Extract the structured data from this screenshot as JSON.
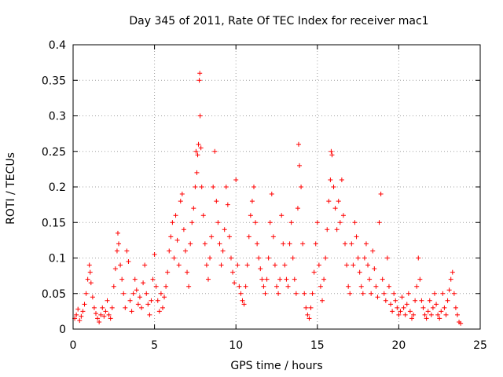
{
  "chart_data": {
    "type": "scatter",
    "title": "Day 345 of 2011, Rate Of TEC Index for receiver mac1",
    "xlabel": "GPS time / hours",
    "ylabel": "ROTI / TECUs",
    "xlim": [
      0,
      25
    ],
    "ylim": [
      0,
      0.4
    ],
    "x_ticks": [
      "0",
      "5",
      "10",
      "15",
      "20",
      "25"
    ],
    "y_ticks": [
      "0",
      "0.05",
      "0.1",
      "0.15",
      "0.2",
      "0.25",
      "0.3",
      "0.35",
      "0.4"
    ],
    "grid": true,
    "marker": "+",
    "color": "#ff0000",
    "series": [
      {
        "points": [
          [
            0.1,
            0.015
          ],
          [
            0.2,
            0.02
          ],
          [
            0.3,
            0.028
          ],
          [
            0.4,
            0.012
          ],
          [
            0.5,
            0.018
          ],
          [
            0.6,
            0.025
          ],
          [
            0.7,
            0.035
          ],
          [
            0.8,
            0.05
          ],
          [
            0.9,
            0.07
          ],
          [
            1.0,
            0.09
          ],
          [
            1.05,
            0.08
          ],
          [
            1.1,
            0.065
          ],
          [
            1.2,
            0.045
          ],
          [
            1.3,
            0.03
          ],
          [
            1.4,
            0.022
          ],
          [
            1.5,
            0.015
          ],
          [
            1.6,
            0.01
          ],
          [
            1.7,
            0.02
          ],
          [
            1.8,
            0.03
          ],
          [
            1.9,
            0.018
          ],
          [
            2.0,
            0.025
          ],
          [
            2.1,
            0.04
          ],
          [
            2.2,
            0.02
          ],
          [
            2.3,
            0.015
          ],
          [
            2.4,
            0.03
          ],
          [
            2.5,
            0.06
          ],
          [
            2.6,
            0.085
          ],
          [
            2.7,
            0.11
          ],
          [
            2.75,
            0.135
          ],
          [
            2.8,
            0.12
          ],
          [
            2.9,
            0.09
          ],
          [
            3.0,
            0.07
          ],
          [
            3.1,
            0.05
          ],
          [
            3.2,
            0.03
          ],
          [
            3.3,
            0.11
          ],
          [
            3.4,
            0.095
          ],
          [
            3.5,
            0.04
          ],
          [
            3.6,
            0.025
          ],
          [
            3.7,
            0.05
          ],
          [
            3.8,
            0.07
          ],
          [
            3.9,
            0.055
          ],
          [
            4.0,
            0.035
          ],
          [
            4.1,
            0.045
          ],
          [
            4.2,
            0.03
          ],
          [
            4.3,
            0.065
          ],
          [
            4.4,
            0.09
          ],
          [
            4.5,
            0.05
          ],
          [
            4.6,
            0.035
          ],
          [
            4.7,
            0.02
          ],
          [
            4.8,
            0.04
          ],
          [
            4.9,
            0.07
          ],
          [
            5.0,
            0.105
          ],
          [
            5.1,
            0.06
          ],
          [
            5.2,
            0.04
          ],
          [
            5.3,
            0.025
          ],
          [
            5.4,
            0.05
          ],
          [
            5.5,
            0.03
          ],
          [
            5.6,
            0.045
          ],
          [
            5.7,
            0.06
          ],
          [
            5.8,
            0.08
          ],
          [
            5.9,
            0.11
          ],
          [
            6.0,
            0.13
          ],
          [
            6.1,
            0.15
          ],
          [
            6.2,
            0.1
          ],
          [
            6.3,
            0.16
          ],
          [
            6.4,
            0.125
          ],
          [
            6.5,
            0.09
          ],
          [
            6.6,
            0.18
          ],
          [
            6.7,
            0.19
          ],
          [
            6.8,
            0.14
          ],
          [
            6.9,
            0.11
          ],
          [
            7.0,
            0.08
          ],
          [
            7.1,
            0.06
          ],
          [
            7.2,
            0.12
          ],
          [
            7.3,
            0.15
          ],
          [
            7.4,
            0.17
          ],
          [
            7.5,
            0.2
          ],
          [
            7.55,
            0.25
          ],
          [
            7.6,
            0.22
          ],
          [
            7.65,
            0.245
          ],
          [
            7.7,
            0.26
          ],
          [
            7.75,
            0.35
          ],
          [
            7.78,
            0.36
          ],
          [
            7.8,
            0.3
          ],
          [
            7.85,
            0.255
          ],
          [
            7.9,
            0.2
          ],
          [
            8.0,
            0.16
          ],
          [
            8.1,
            0.12
          ],
          [
            8.2,
            0.09
          ],
          [
            8.3,
            0.07
          ],
          [
            8.4,
            0.1
          ],
          [
            8.5,
            0.13
          ],
          [
            8.6,
            0.2
          ],
          [
            8.7,
            0.25
          ],
          [
            8.8,
            0.18
          ],
          [
            8.9,
            0.15
          ],
          [
            9.0,
            0.12
          ],
          [
            9.1,
            0.09
          ],
          [
            9.2,
            0.11
          ],
          [
            9.3,
            0.14
          ],
          [
            9.4,
            0.2
          ],
          [
            9.5,
            0.175
          ],
          [
            9.6,
            0.13
          ],
          [
            9.7,
            0.1
          ],
          [
            9.8,
            0.08
          ],
          [
            9.9,
            0.065
          ],
          [
            10.0,
            0.21
          ],
          [
            10.1,
            0.09
          ],
          [
            10.2,
            0.06
          ],
          [
            10.3,
            0.05
          ],
          [
            10.4,
            0.04
          ],
          [
            10.5,
            0.035
          ],
          [
            10.6,
            0.06
          ],
          [
            10.7,
            0.09
          ],
          [
            10.8,
            0.13
          ],
          [
            10.9,
            0.16
          ],
          [
            11.0,
            0.18
          ],
          [
            11.1,
            0.2
          ],
          [
            11.2,
            0.15
          ],
          [
            11.3,
            0.12
          ],
          [
            11.4,
            0.1
          ],
          [
            11.5,
            0.085
          ],
          [
            11.6,
            0.07
          ],
          [
            11.7,
            0.06
          ],
          [
            11.8,
            0.05
          ],
          [
            11.9,
            0.07
          ],
          [
            12.0,
            0.1
          ],
          [
            12.1,
            0.15
          ],
          [
            12.2,
            0.19
          ],
          [
            12.3,
            0.13
          ],
          [
            12.4,
            0.09
          ],
          [
            12.5,
            0.06
          ],
          [
            12.6,
            0.05
          ],
          [
            12.7,
            0.07
          ],
          [
            12.8,
            0.16
          ],
          [
            12.9,
            0.12
          ],
          [
            13.0,
            0.09
          ],
          [
            13.1,
            0.07
          ],
          [
            13.2,
            0.06
          ],
          [
            13.3,
            0.12
          ],
          [
            13.4,
            0.15
          ],
          [
            13.5,
            0.1
          ],
          [
            13.6,
            0.07
          ],
          [
            13.7,
            0.05
          ],
          [
            13.8,
            0.17
          ],
          [
            13.85,
            0.26
          ],
          [
            13.9,
            0.23
          ],
          [
            14.0,
            0.2
          ],
          [
            14.1,
            0.12
          ],
          [
            14.2,
            0.05
          ],
          [
            14.3,
            0.03
          ],
          [
            14.4,
            0.02
          ],
          [
            14.5,
            0.015
          ],
          [
            14.6,
            0.03
          ],
          [
            14.7,
            0.05
          ],
          [
            14.8,
            0.08
          ],
          [
            14.9,
            0.12
          ],
          [
            15.0,
            0.15
          ],
          [
            15.1,
            0.09
          ],
          [
            15.2,
            0.06
          ],
          [
            15.3,
            0.04
          ],
          [
            15.4,
            0.07
          ],
          [
            15.5,
            0.1
          ],
          [
            15.6,
            0.14
          ],
          [
            15.7,
            0.18
          ],
          [
            15.8,
            0.21
          ],
          [
            15.85,
            0.25
          ],
          [
            15.9,
            0.245
          ],
          [
            16.0,
            0.2
          ],
          [
            16.1,
            0.17
          ],
          [
            16.2,
            0.14
          ],
          [
            16.3,
            0.18
          ],
          [
            16.4,
            0.15
          ],
          [
            16.5,
            0.21
          ],
          [
            16.6,
            0.16
          ],
          [
            16.7,
            0.12
          ],
          [
            16.8,
            0.09
          ],
          [
            16.9,
            0.06
          ],
          [
            17.0,
            0.05
          ],
          [
            17.1,
            0.12
          ],
          [
            17.2,
            0.09
          ],
          [
            17.3,
            0.15
          ],
          [
            17.4,
            0.13
          ],
          [
            17.5,
            0.1
          ],
          [
            17.6,
            0.08
          ],
          [
            17.7,
            0.06
          ],
          [
            17.8,
            0.05
          ],
          [
            17.9,
            0.1
          ],
          [
            18.0,
            0.12
          ],
          [
            18.1,
            0.09
          ],
          [
            18.2,
            0.07
          ],
          [
            18.3,
            0.05
          ],
          [
            18.4,
            0.11
          ],
          [
            18.5,
            0.085
          ],
          [
            18.6,
            0.06
          ],
          [
            18.7,
            0.045
          ],
          [
            18.8,
            0.15
          ],
          [
            18.9,
            0.19
          ],
          [
            19.0,
            0.07
          ],
          [
            19.1,
            0.05
          ],
          [
            19.2,
            0.04
          ],
          [
            19.3,
            0.1
          ],
          [
            19.4,
            0.06
          ],
          [
            19.5,
            0.035
          ],
          [
            19.6,
            0.025
          ],
          [
            19.7,
            0.05
          ],
          [
            19.8,
            0.04
          ],
          [
            19.9,
            0.03
          ],
          [
            20.0,
            0.02
          ],
          [
            20.1,
            0.025
          ],
          [
            20.2,
            0.045
          ],
          [
            20.3,
            0.03
          ],
          [
            20.4,
            0.02
          ],
          [
            20.5,
            0.035
          ],
          [
            20.6,
            0.05
          ],
          [
            20.7,
            0.025
          ],
          [
            20.8,
            0.015
          ],
          [
            20.9,
            0.02
          ],
          [
            21.0,
            0.04
          ],
          [
            21.1,
            0.06
          ],
          [
            21.2,
            0.1
          ],
          [
            21.3,
            0.07
          ],
          [
            21.4,
            0.04
          ],
          [
            21.5,
            0.03
          ],
          [
            21.6,
            0.02
          ],
          [
            21.7,
            0.015
          ],
          [
            21.8,
            0.025
          ],
          [
            21.9,
            0.04
          ],
          [
            22.0,
            0.02
          ],
          [
            22.1,
            0.03
          ],
          [
            22.2,
            0.05
          ],
          [
            22.3,
            0.035
          ],
          [
            22.4,
            0.02
          ],
          [
            22.5,
            0.015
          ],
          [
            22.6,
            0.025
          ],
          [
            22.7,
            0.05
          ],
          [
            22.8,
            0.03
          ],
          [
            22.9,
            0.02
          ],
          [
            23.0,
            0.04
          ],
          [
            23.1,
            0.055
          ],
          [
            23.2,
            0.07
          ],
          [
            23.3,
            0.08
          ],
          [
            23.4,
            0.05
          ],
          [
            23.5,
            0.03
          ],
          [
            23.6,
            0.02
          ],
          [
            23.7,
            0.01
          ],
          [
            23.8,
            0.008
          ]
        ]
      }
    ]
  }
}
